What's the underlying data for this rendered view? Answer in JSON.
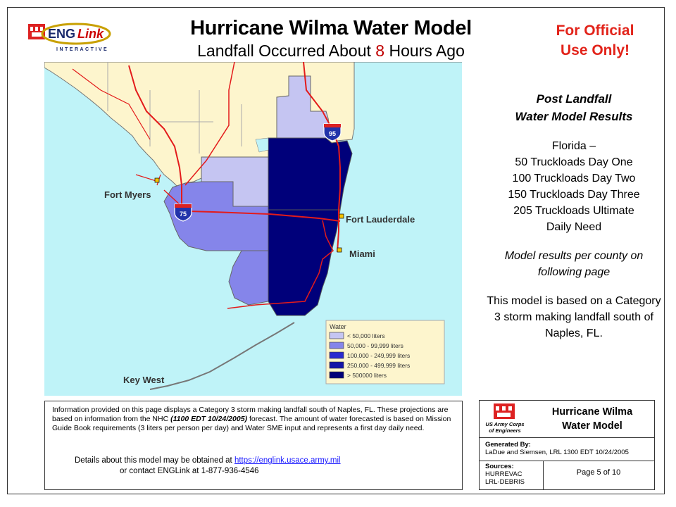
{
  "header": {
    "logo_text_eng": "ENG",
    "logo_text_link": "Link",
    "logo_sub": "INTERACTIVE",
    "title": "Hurricane Wilma Water Model",
    "subtitle_pre": "Landfall Occurred About ",
    "subtitle_hours": "8",
    "subtitle_post": " Hours Ago",
    "official_line1": "For Official",
    "official_line2": "Use Only!"
  },
  "map": {
    "cities": {
      "fort_myers": "Fort Myers",
      "fort_lauderdale": "Fort Lauderdale",
      "miami": "Miami",
      "key_west": "Key West"
    },
    "shields": {
      "i95": "95",
      "i75": "75"
    },
    "legend": {
      "title": "Water",
      "items": [
        {
          "label": "< 50,000 liters",
          "color": "#c5c5f2"
        },
        {
          "label": "50,000 - 99,999 liters",
          "color": "#8585ea"
        },
        {
          "label": "100,000 - 249,999 liters",
          "color": "#2a2acf"
        },
        {
          "label": "250,000 - 499,999 liters",
          "color": "#1414a8"
        },
        {
          "label": "> 500000 liters",
          "color": "#00007a"
        }
      ]
    },
    "colors": {
      "ocean": "#bff3f8",
      "land": "#fdf5cd",
      "road": "#e31b1b",
      "legend_bg": "#fdf5cd"
    }
  },
  "results": {
    "heading1": "Post Landfall",
    "heading2": "Water Model Results",
    "state": "Florida –",
    "day_one": "50 Truckloads Day One",
    "day_two": "100 Truckloads Day Two",
    "day_three": "150 Truckloads Day Three",
    "ultimate1": "205 Truckloads Ultimate",
    "ultimate2": "Daily Need",
    "note": "Model results per county on following page",
    "basis": "This model is based on a Category 3 storm making landfall south of Naples, FL."
  },
  "info": {
    "p1_a": "Information provided on this page displays a Category 3 storm making landfall south of Naples, FL. These projections are based on information from the NHC ",
    "p1_bold": "(1100 EDT   10/24/2005)",
    "p1_b": " forecast.  The amount of water forecasted is based on Mission Guide Book requirements (3 liters per person per day) and Water SME input and represents a first day daily need.",
    "details_pre": "Details about this model may be obtained at  ",
    "link": "https://englink.usace.army.mil",
    "contact": "or  contact ENGLink at 1-877-936-4546"
  },
  "title_block": {
    "corps_line1": "US Army Corps",
    "corps_line2": "of Engineers",
    "title1": "Hurricane Wilma",
    "title2": "Water Model",
    "generated_label": "Generated By:",
    "generated_value": "LaDue and Siemsen, LRL  1300 EDT  10/24/2005",
    "sources_label": "Sources:",
    "source1": "HURREVAC",
    "source2": "LRL-DEBRIS",
    "page": "Page 5 of 10"
  }
}
